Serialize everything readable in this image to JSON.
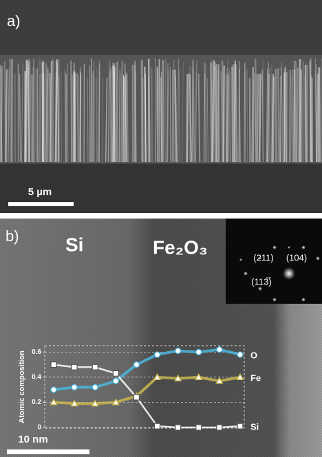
{
  "panel_a": {
    "label": "a)",
    "scale_bar": "5 µm"
  },
  "panel_b": {
    "label": "b)",
    "region_left": "Si",
    "region_right": "Fe₂O₃",
    "scale_bar": "10 nm",
    "diffraction": {
      "spots": [
        "(211)",
        "(104)",
        "(113̅)"
      ]
    }
  },
  "chart_data": {
    "type": "line",
    "y_label": "Atomic composition",
    "categories": [
      null,
      null,
      null,
      null,
      null,
      null,
      null,
      null,
      null,
      null
    ],
    "series": [
      {
        "name": "O",
        "color": "#4bb6de",
        "marker": "circle",
        "values": [
          0.3,
          0.32,
          0.32,
          0.37,
          0.5,
          0.58,
          0.61,
          0.6,
          0.62,
          0.58
        ]
      },
      {
        "name": "Fe",
        "color": "#c9b64e",
        "marker": "triangle",
        "values": [
          0.2,
          0.19,
          0.19,
          0.2,
          0.25,
          0.4,
          0.39,
          0.4,
          0.37,
          0.4
        ]
      },
      {
        "name": "Si",
        "color": "#ffffff",
        "marker": "square",
        "values": [
          0.5,
          0.48,
          0.48,
          0.43,
          0.24,
          0.01,
          0,
          0,
          0,
          0.01
        ]
      }
    ],
    "ylim": [
      0,
      0.64
    ],
    "yticks": [
      0,
      0.2,
      0.4,
      0.6
    ],
    "grid": true
  }
}
